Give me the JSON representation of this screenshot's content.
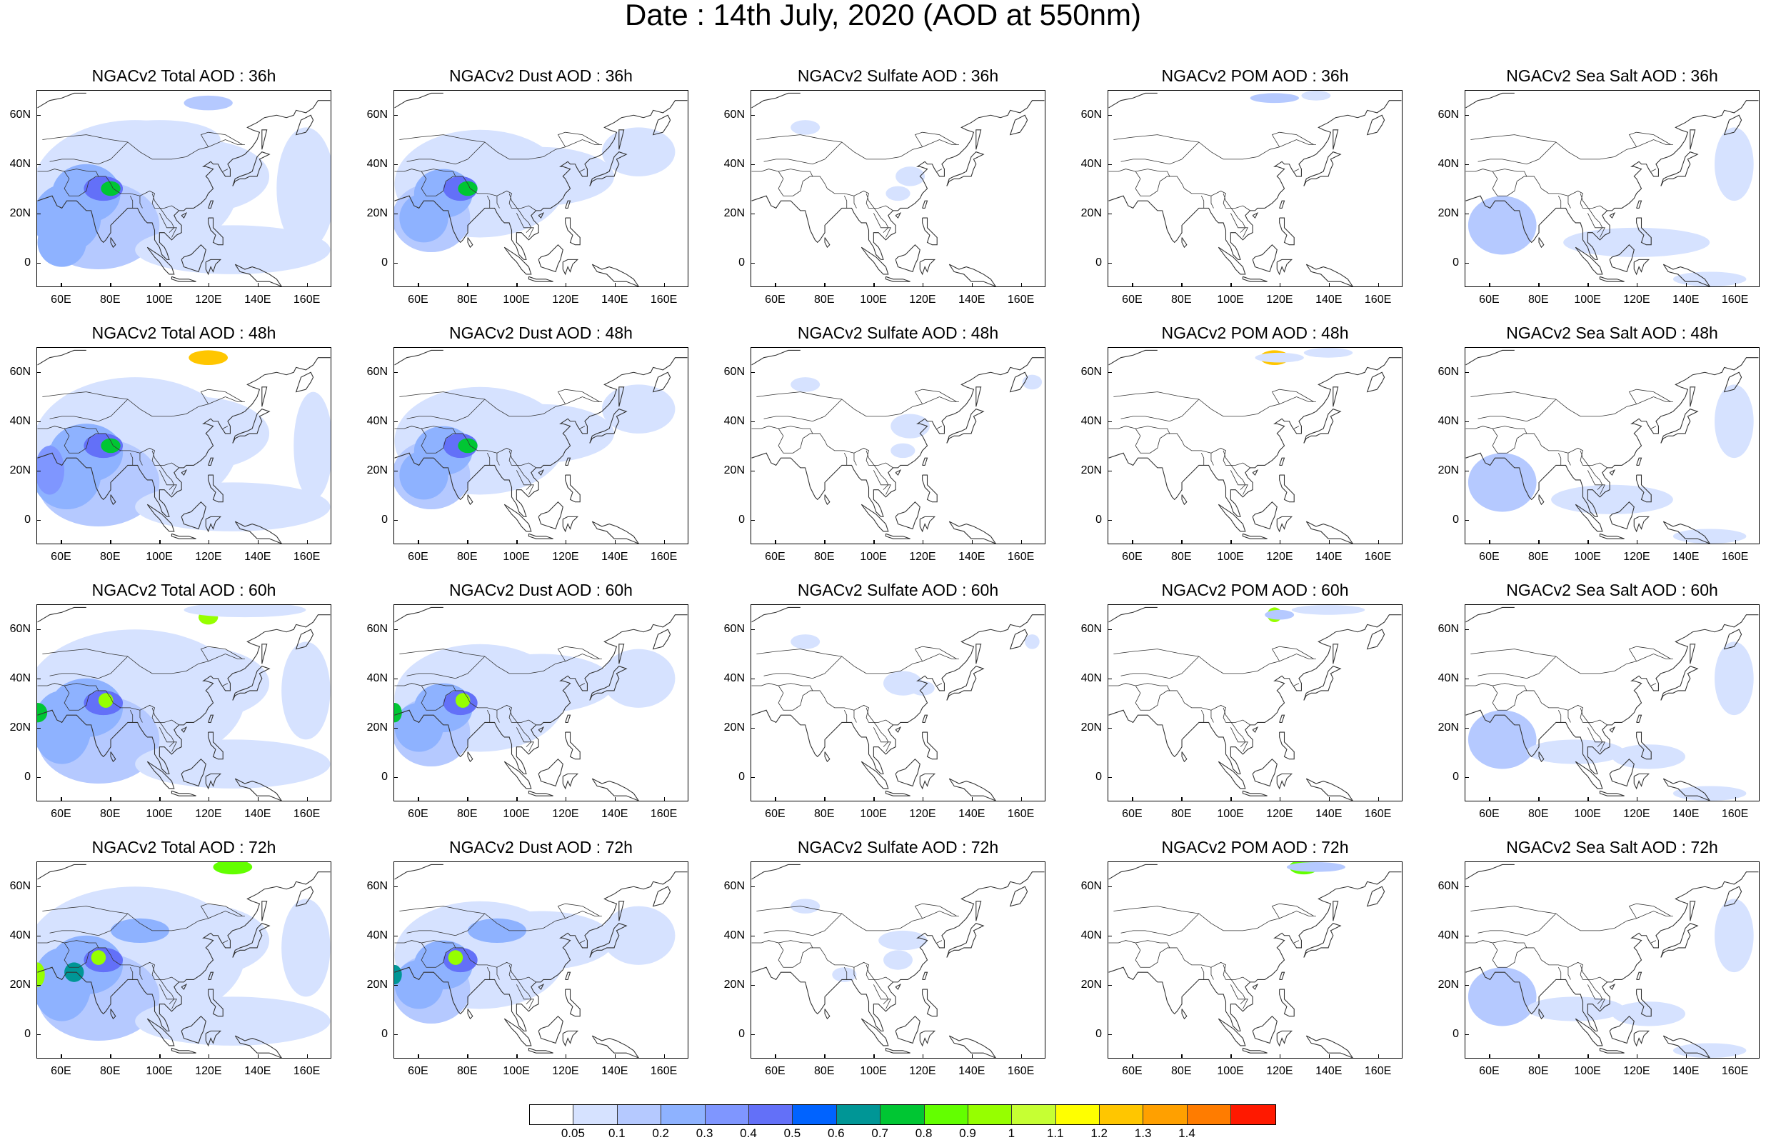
{
  "page_title": "Date : 14th July, 2020 (AOD at 550nm)",
  "axis_labels": {
    "y": [
      "60N",
      "40N",
      "20N",
      "0"
    ],
    "x": [
      "60E",
      "80E",
      "100E",
      "120E",
      "140E",
      "160E"
    ]
  },
  "map_extent": {
    "lon": [
      50,
      170
    ],
    "lat": [
      -10,
      70
    ]
  },
  "rows": [
    {
      "lead": "36h",
      "panels": [
        {
          "title": "NGACv2 Total AOD : 36h",
          "species": "total"
        },
        {
          "title": "NGACv2 Dust AOD : 36h",
          "species": "dust"
        },
        {
          "title": "NGACv2 Sulfate AOD : 36h",
          "species": "sulfate"
        },
        {
          "title": "NGACv2 POM AOD : 36h",
          "species": "pom"
        },
        {
          "title": "NGACv2 Sea Salt AOD : 36h",
          "species": "seasalt"
        }
      ]
    },
    {
      "lead": "48h",
      "panels": [
        {
          "title": "NGACv2 Total AOD : 48h",
          "species": "total"
        },
        {
          "title": "NGACv2 Dust AOD : 48h",
          "species": "dust"
        },
        {
          "title": "NGACv2 Sulfate AOD : 48h",
          "species": "sulfate"
        },
        {
          "title": "NGACv2 POM AOD : 48h",
          "species": "pom"
        },
        {
          "title": "NGACv2 Sea Salt AOD : 48h",
          "species": "seasalt"
        }
      ]
    },
    {
      "lead": "60h",
      "panels": [
        {
          "title": "NGACv2 Total AOD : 60h",
          "species": "total"
        },
        {
          "title": "NGACv2 Dust AOD : 60h",
          "species": "dust"
        },
        {
          "title": "NGACv2 Sulfate AOD : 60h",
          "species": "sulfate"
        },
        {
          "title": "NGACv2 POM AOD : 60h",
          "species": "pom"
        },
        {
          "title": "NGACv2 Sea Salt AOD : 60h",
          "species": "seasalt"
        }
      ]
    },
    {
      "lead": "72h",
      "panels": [
        {
          "title": "NGACv2 Total AOD : 72h",
          "species": "total"
        },
        {
          "title": "NGACv2 Dust AOD : 72h",
          "species": "dust"
        },
        {
          "title": "NGACv2 Sulfate AOD : 72h",
          "species": "sulfate"
        },
        {
          "title": "NGACv2 POM AOD : 72h",
          "species": "pom"
        },
        {
          "title": "NGACv2 Sea Salt  AOD : 72h",
          "species": "seasalt"
        }
      ]
    }
  ],
  "colorbar": {
    "labels": [
      "0.05",
      "0.1",
      "0.2",
      "0.3",
      "0.4",
      "0.5",
      "0.6",
      "0.7",
      "0.8",
      "0.9",
      "1",
      "1.1",
      "1.2",
      "1.3",
      "1.4"
    ],
    "colors": [
      "#ffffff",
      "#d6e2ff",
      "#b5c9ff",
      "#8eb2ff",
      "#7f96ff",
      "#6370f8",
      "#0063ff",
      "#009696",
      "#00c633",
      "#63ff00",
      "#96ff00",
      "#c6ff33",
      "#ffff00",
      "#ffc600",
      "#ffa000",
      "#ff7c00",
      "#ff1900"
    ]
  }
}
